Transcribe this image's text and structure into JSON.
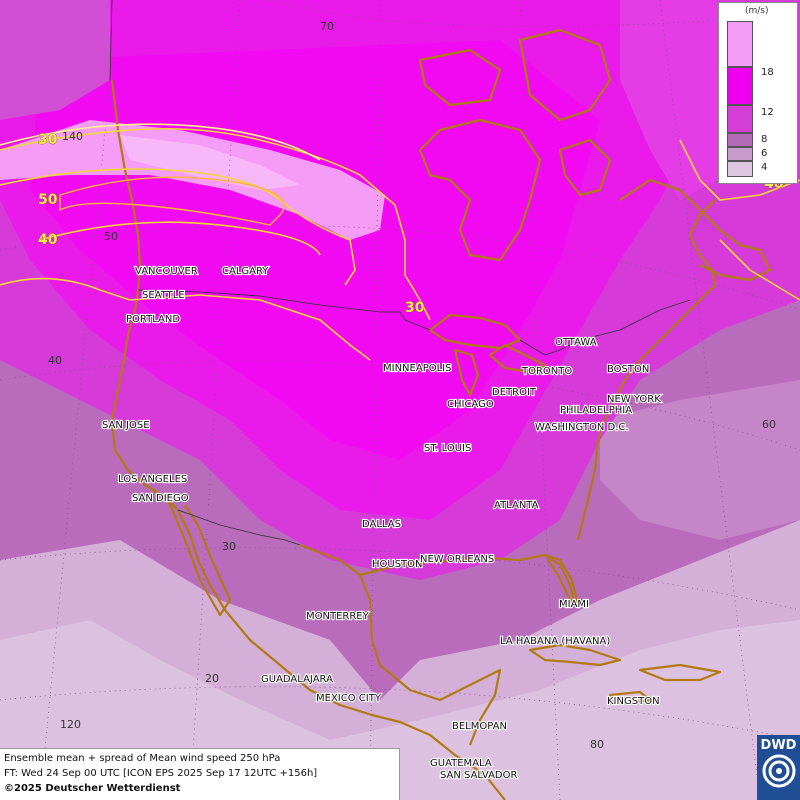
{
  "legend": {
    "unit": "(m/s)",
    "levels": [
      {
        "label": "",
        "color": "#f49cf7"
      },
      {
        "label": "18",
        "color": "#ee00ee"
      },
      {
        "label": "12",
        "color": "#d43ed6"
      },
      {
        "label": "8",
        "color": "#b46ab8"
      },
      {
        "label": "6",
        "color": "#c79acb"
      },
      {
        "label": "4",
        "color": "#ddc6e0"
      }
    ]
  },
  "contour_labels": [
    "30",
    "50",
    "40",
    "30",
    "40"
  ],
  "grid_labels": {
    "lat_70": "70",
    "lon_140": "140",
    "lat_50": "50",
    "lat_40": "40",
    "lat_30": "30",
    "lat_20": "20",
    "lon_120": "120",
    "lon_60": "60",
    "lon_80": "80"
  },
  "cities": [
    "VANCOUVER",
    "CALGARY",
    "SEATTLE",
    "PORTLAND",
    "MINNEAPOLIS",
    "OTTAWA",
    "TORONTO",
    "BOSTON",
    "DETROIT",
    "CHICAGO",
    "NEW YORK",
    "PHILADELPHIA",
    "WASHINGTON D.C.",
    "SAN JOSE",
    "ST. LOUIS",
    "LOS ANGELES",
    "SAN DIEGO",
    "ATLANTA",
    "DALLAS",
    "HOUSTON",
    "NEW ORLEANS",
    "MIAMI",
    "MONTERREY",
    "LA HABANA (HAVANA)",
    "GUADALAJARA",
    "MEXICO CITY",
    "KINGSTON",
    "BELMOPAN",
    "GUATEMALA",
    "SAN SALVADOR"
  ],
  "caption": {
    "line1": "Ensemble mean + spread of Mean wind speed 250 hPa",
    "line2": "FT: Wed 24 Sep 00 UTC [ICON EPS 2025 Sep 17 12UTC +156h]",
    "line3": "©2025 Deutscher Wetterdienst"
  },
  "logo": {
    "text": "DWD"
  }
}
